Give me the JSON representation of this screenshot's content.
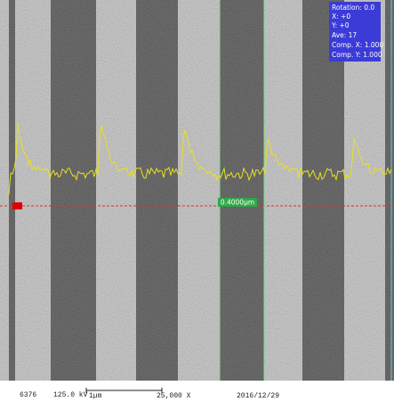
{
  "info": {
    "rotation": "Rotation: 0.0",
    "x": "X: +0",
    "y": "Y: +0",
    "ave": "Ave: 17",
    "comp_x": "Comp. X: 1.000",
    "comp_y": "Comp. Y: 1.000"
  },
  "measurement": "0.4000μm",
  "footer": {
    "id": "6376",
    "voltage": "125.0 kV",
    "scale": "1μm",
    "magnification": "25,000 X",
    "date": "2016/12/29"
  }
}
